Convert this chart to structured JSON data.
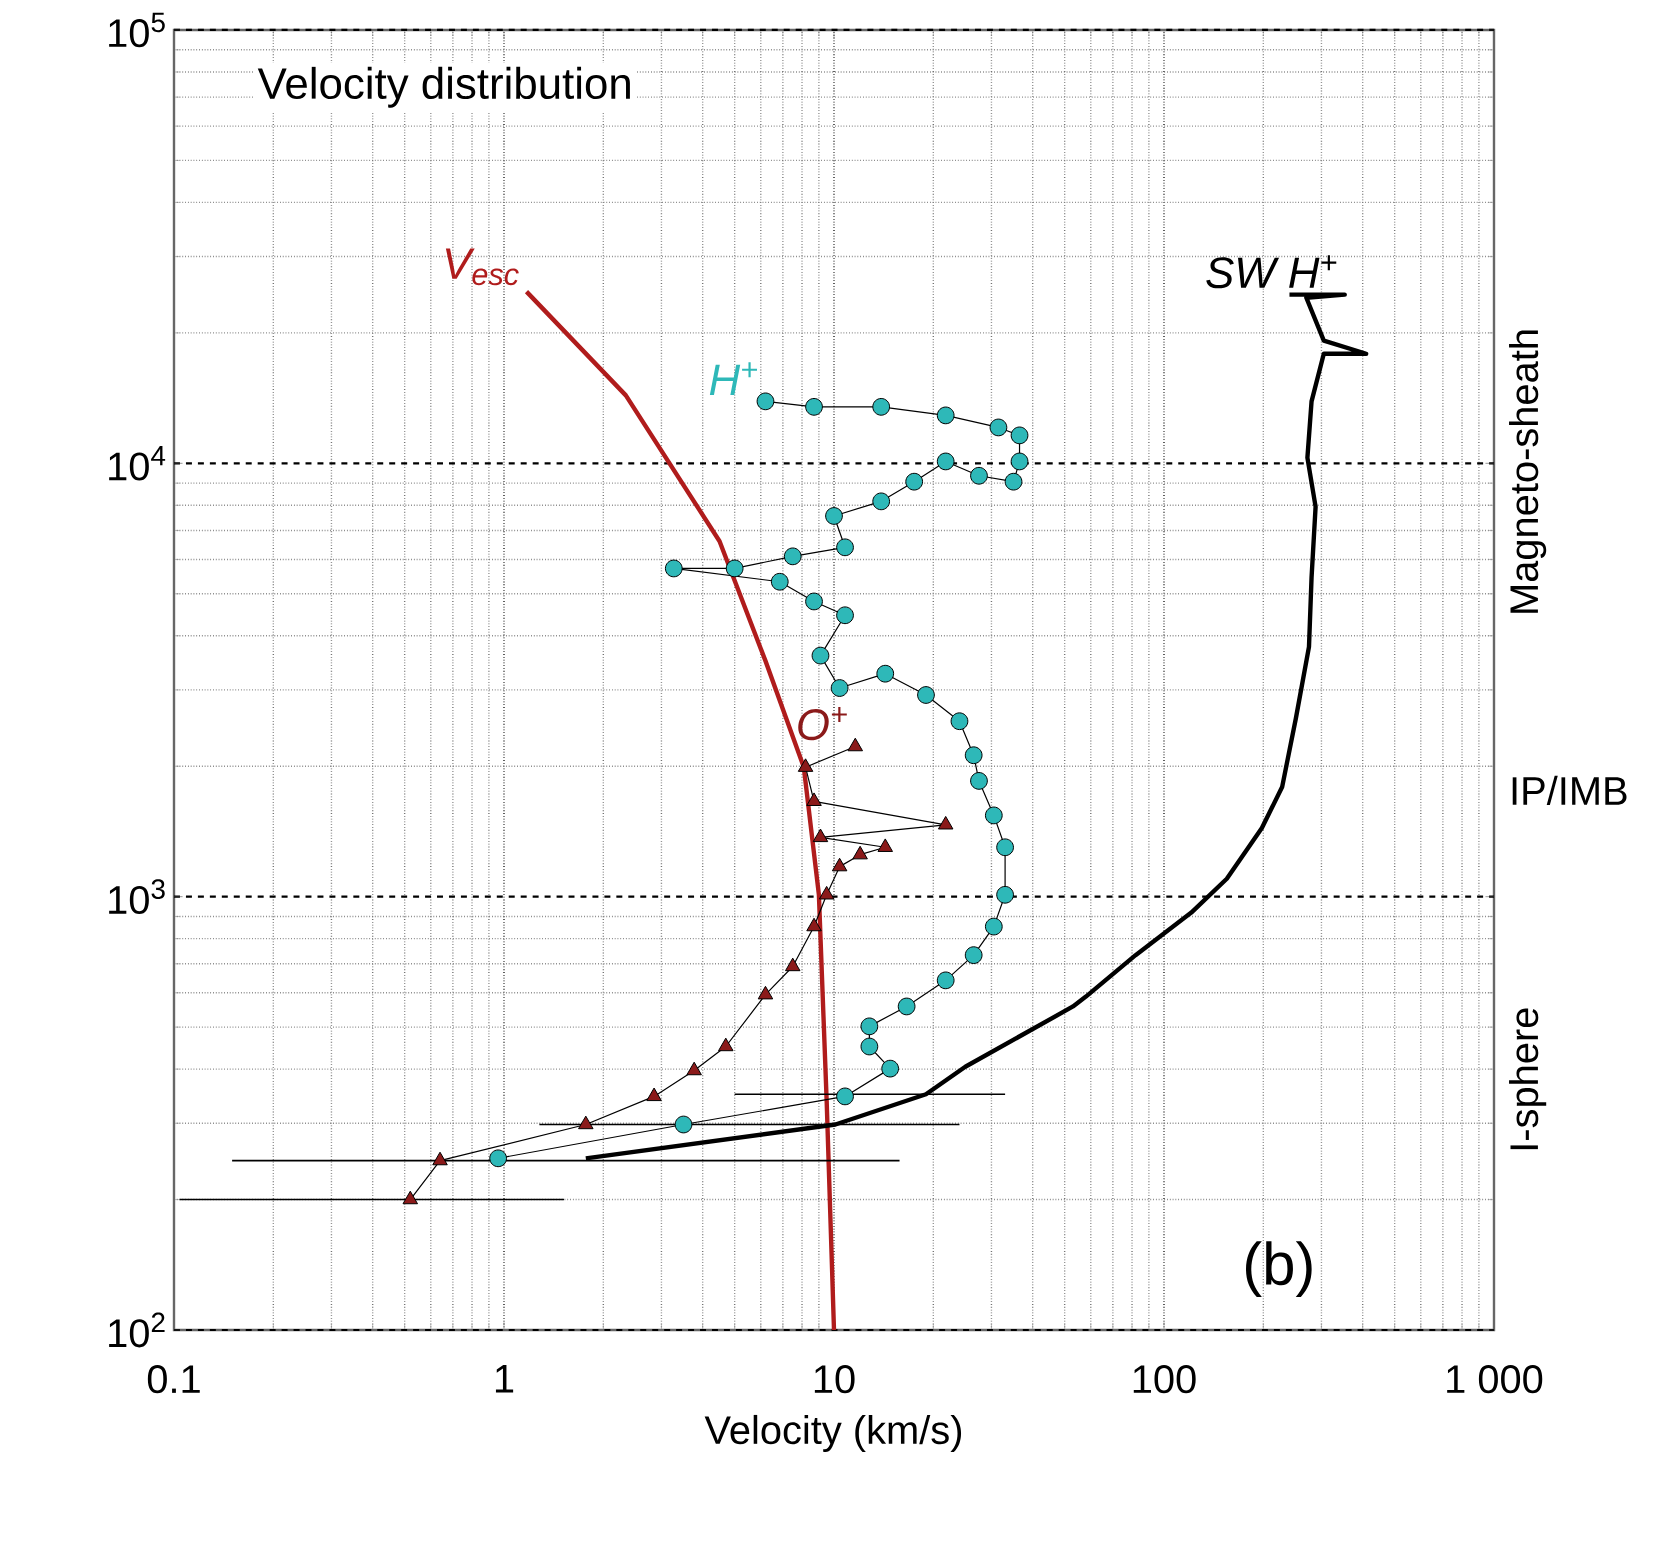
{
  "chart_data": {
    "type": "line",
    "title": "Velocity distribution",
    "xlabel": "Velocity (km/s)",
    "log": "xy",
    "grid": true,
    "xlim": [
      0.1,
      1000
    ],
    "ylim": [
      100,
      100000
    ],
    "xticks": [
      0.1,
      1,
      10,
      100,
      {
        "value": 1000,
        "label": "1 000"
      }
    ],
    "yticks": [
      {
        "value": 100,
        "label": "10$^{2}$"
      },
      {
        "value": 1000,
        "label": "10$^{3}$"
      },
      {
        "value": 10000,
        "label": "10$^{4}$"
      },
      {
        "value": 100000,
        "label": "10$^{5}$"
      }
    ],
    "annotations": [
      "(b)",
      "Magneto-sheath",
      "IP/IMB",
      "I-sphere"
    ],
    "series": [
      {
        "name": "V$_{esc}$",
        "marker": "none",
        "color": "#b01c1c",
        "x": [
          1.17,
          2.34,
          4.5,
          6.2,
          8.1,
          9.0,
          9.5,
          10
        ],
        "values": [
          24900,
          14350,
          6610,
          3500,
          1990,
          1010,
          339,
          100
        ]
      },
      {
        "name": "O$^{+}$",
        "marker": "triangle",
        "color": "#8b1a1a",
        "x": [
          0.52,
          0.64,
          1.77,
          2.85,
          3.77,
          4.7,
          6.2,
          7.5,
          8.7,
          9.5,
          10.4,
          12.0,
          14.3,
          9.1,
          21.8,
          8.7,
          8.2,
          11.6
        ],
        "values": [
          200,
          246,
          298,
          346,
          397,
          451,
          594,
          690,
          853,
          1010,
          1173,
          1250,
          1300,
          1370,
          1465,
          1660,
          1990,
          2220
        ],
        "xerrors": [
          [
            0.104,
            1.52
          ],
          [
            0.15,
            15.8
          ],
          null,
          null,
          null,
          null,
          null,
          null,
          null,
          null,
          null,
          null,
          null,
          null,
          null,
          null,
          null,
          null
        ]
      },
      {
        "name": "H$^{+}$",
        "marker": "circle",
        "color": "#2eb8b8",
        "x": [
          0.96,
          3.5,
          10.8,
          14.8,
          12.8,
          12.8,
          16.6,
          21.8,
          26.5,
          30.5,
          33,
          33,
          30.5,
          27.5,
          26.5,
          24.0,
          19,
          14.3,
          10.4,
          9.1,
          10.8,
          8.7,
          6.85,
          3.27,
          5.0,
          7.5,
          10.8,
          10,
          13.9,
          17.5,
          21.8,
          27.5,
          35,
          36.5,
          36.5,
          31.5,
          21.8,
          13.9,
          8.7,
          6.2
        ],
        "values": [
          249,
          298,
          346,
          401,
          451,
          502,
          558,
          641,
          733,
          853,
          1010,
          1300,
          1540,
          1850,
          2120,
          2540,
          2920,
          3270,
          3030,
          3600,
          4460,
          4800,
          5330,
          5720,
          5720,
          6100,
          6400,
          7560,
          8170,
          9070,
          10100,
          9360,
          9070,
          10100,
          11600,
          12100,
          12900,
          13500,
          13500,
          13900
        ]
      },
      {
        "name": "SW H$^{+}$",
        "marker": "none",
        "color": "#000000",
        "x": [
          1.77,
          10.1,
          19,
          25,
          53,
          58,
          82,
          121,
          155,
          198,
          228,
          251,
          275,
          280,
          288,
          272,
          280,
          305,
          410,
          305,
          270,
          353,
          240
        ],
        "values": [
          249,
          298,
          350,
          405,
          558,
          588,
          733,
          919,
          1100,
          1440,
          1790,
          2580,
          3770,
          5450,
          7940,
          10300,
          13900,
          17900,
          17900,
          19200,
          24100,
          24500,
          24500
        ],
        "xerrors": [
          null,
          [
            1.28,
            24
          ],
          [
            5,
            33
          ],
          null,
          null,
          null,
          null,
          null,
          null,
          null,
          null,
          null,
          null,
          null,
          null,
          null,
          null,
          null,
          null,
          null,
          null,
          null,
          null
        ]
      }
    ]
  }
}
